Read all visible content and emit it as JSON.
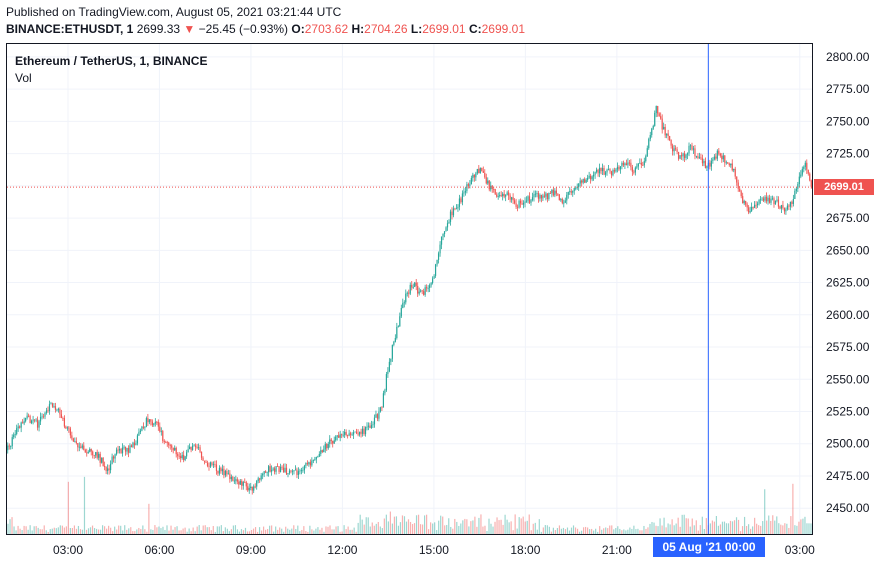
{
  "published": "Published on TradingView.com, August 05, 2021 03:21:44 UTC",
  "ohlc_bar": {
    "symbol": "BINANCE:ETHUSDT, 1",
    "price": "2699.33",
    "arrow": "▼",
    "change": "−25.45 (−0.93%)",
    "o_label": "O:",
    "o": "2703.62",
    "h_label": "H:",
    "h": "2704.26",
    "l_label": "L:",
    "l": "2699.01",
    "c_label": "C:",
    "c": "2699.01"
  },
  "legend": {
    "title": "Ethereum / TetherUS, 1, BINANCE",
    "volume": "Vol"
  },
  "crosshair_label": "05 Aug '21    00:00",
  "last_price_label": "2699.01",
  "colors": {
    "up": "#26a69a",
    "down": "#ef5350",
    "crosshair": "#2962ff",
    "grid": "#f0f3fa"
  },
  "chart_data": {
    "type": "candlestick",
    "symbol": "ETHUSDT",
    "interval": "1 minute",
    "y_axis": {
      "range": [
        2430,
        2810
      ],
      "ticks": [
        2450,
        2475,
        2500,
        2525,
        2550,
        2575,
        2600,
        2625,
        2650,
        2675,
        2700,
        2725,
        2750,
        2775,
        2800
      ],
      "tick_labels": [
        "2450.00",
        "2475.00",
        "2500.00",
        "2525.00",
        "2550.00",
        "2575.00",
        "2600.00",
        "2625.00",
        "2650.00",
        "2675.00",
        "2700.00",
        "2725.00",
        "2750.00",
        "2775.00",
        "2800.00"
      ]
    },
    "x_axis": {
      "range_hours": [
        1.0,
        27.4
      ],
      "ticks_hours": [
        3,
        6,
        9,
        12,
        15,
        18,
        21,
        27
      ],
      "tick_labels": [
        "03:00",
        "06:00",
        "09:00",
        "12:00",
        "15:00",
        "18:00",
        "21:00",
        "03:00"
      ]
    },
    "crosshair_x_hours": 24,
    "last_price": 2699.01,
    "price_path": [
      [
        1.0,
        2495
      ],
      [
        1.3,
        2510
      ],
      [
        1.7,
        2520
      ],
      [
        2.0,
        2515
      ],
      [
        2.3,
        2525
      ],
      [
        2.5,
        2532
      ],
      [
        2.8,
        2520
      ],
      [
        3.0,
        2510
      ],
      [
        3.3,
        2500
      ],
      [
        3.6,
        2495
      ],
      [
        4.0,
        2490
      ],
      [
        4.3,
        2480
      ],
      [
        4.6,
        2495
      ],
      [
        5.0,
        2495
      ],
      [
        5.3,
        2505
      ],
      [
        5.6,
        2520
      ],
      [
        5.9,
        2515
      ],
      [
        6.2,
        2500
      ],
      [
        6.5,
        2495
      ],
      [
        6.8,
        2490
      ],
      [
        7.2,
        2500
      ],
      [
        7.5,
        2485
      ],
      [
        7.9,
        2480
      ],
      [
        8.3,
        2475
      ],
      [
        8.6,
        2470
      ],
      [
        9.0,
        2465
      ],
      [
        9.3,
        2475
      ],
      [
        9.6,
        2480
      ],
      [
        10.0,
        2480
      ],
      [
        10.3,
        2478
      ],
      [
        10.6,
        2478
      ],
      [
        10.9,
        2485
      ],
      [
        11.3,
        2495
      ],
      [
        11.6,
        2502
      ],
      [
        12.0,
        2505
      ],
      [
        12.3,
        2510
      ],
      [
        12.6,
        2508
      ],
      [
        13.0,
        2515
      ],
      [
        13.3,
        2530
      ],
      [
        13.5,
        2560
      ],
      [
        13.8,
        2590
      ],
      [
        14.0,
        2610
      ],
      [
        14.3,
        2625
      ],
      [
        14.6,
        2615
      ],
      [
        14.9,
        2625
      ],
      [
        15.1,
        2640
      ],
      [
        15.3,
        2665
      ],
      [
        15.6,
        2680
      ],
      [
        15.9,
        2690
      ],
      [
        16.2,
        2705
      ],
      [
        16.5,
        2712
      ],
      [
        16.8,
        2700
      ],
      [
        17.1,
        2690
      ],
      [
        17.4,
        2695
      ],
      [
        17.7,
        2685
      ],
      [
        18.0,
        2688
      ],
      [
        18.3,
        2692
      ],
      [
        18.6,
        2690
      ],
      [
        18.9,
        2695
      ],
      [
        19.2,
        2688
      ],
      [
        19.5,
        2695
      ],
      [
        19.8,
        2702
      ],
      [
        20.1,
        2705
      ],
      [
        20.4,
        2712
      ],
      [
        20.7,
        2710
      ],
      [
        21.0,
        2712
      ],
      [
        21.3,
        2718
      ],
      [
        21.6,
        2712
      ],
      [
        21.9,
        2720
      ],
      [
        22.1,
        2740
      ],
      [
        22.3,
        2760
      ],
      [
        22.5,
        2745
      ],
      [
        22.8,
        2730
      ],
      [
        23.1,
        2720
      ],
      [
        23.4,
        2730
      ],
      [
        23.7,
        2720
      ],
      [
        24.0,
        2715
      ],
      [
        24.3,
        2725
      ],
      [
        24.6,
        2720
      ],
      [
        24.9,
        2708
      ],
      [
        25.1,
        2690
      ],
      [
        25.3,
        2682
      ],
      [
        25.6,
        2685
      ],
      [
        25.9,
        2690
      ],
      [
        26.2,
        2688
      ],
      [
        26.5,
        2682
      ],
      [
        26.8,
        2690
      ],
      [
        27.0,
        2708
      ],
      [
        27.2,
        2716
      ],
      [
        27.4,
        2699
      ]
    ],
    "volume_note": "volume bars at bottom of pane, larger spikes around 12:30–18:00 and 22:00–03:00"
  }
}
